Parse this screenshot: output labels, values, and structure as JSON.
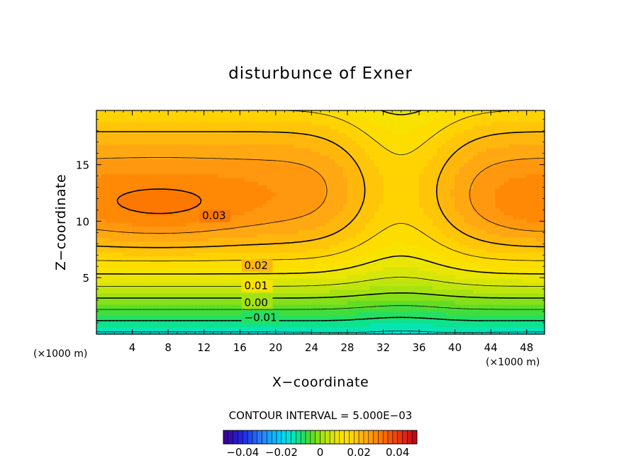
{
  "chart_data": {
    "type": "heatmap",
    "title": "disturbunce of Exner",
    "xlabel": "X−coordinate",
    "ylabel": "Z−coordinate",
    "x_unit": "(×1000 m)",
    "x_unit_right": "(×1000 m)",
    "xlim": [
      0,
      50
    ],
    "ylim": [
      0,
      19.8
    ],
    "x_ticks": [
      4,
      8,
      12,
      16,
      20,
      24,
      28,
      32,
      36,
      40,
      44,
      48
    ],
    "y_ticks": [
      5,
      10,
      15
    ],
    "contour_interval_text": "CONTOUR INTERVAL = 5.000E−03",
    "contour_interval": 0.005,
    "contour_labels": [
      {
        "text": "0.03",
        "x": 11.8,
        "z": 10.3,
        "value": 0.03
      },
      {
        "text": "0.02",
        "x": 16.5,
        "z": 5.9,
        "value": 0.02
      },
      {
        "text": "0.01",
        "x": 16.5,
        "z": 4.1,
        "value": 0.01
      },
      {
        "text": "0.00",
        "x": 16.5,
        "z": 2.6,
        "value": 0.0
      },
      {
        "text": "−0.01",
        "x": 16.5,
        "z": 1.3,
        "value": -0.01
      }
    ],
    "colorbar": {
      "range": [
        -0.05,
        0.05
      ],
      "tick_values": [
        -0.04,
        -0.02,
        0,
        0.02,
        0.04
      ],
      "tick_labels": [
        "−0.04",
        "−0.02",
        "0",
        "0.02",
        "0.04"
      ]
    },
    "field_description": "Exner pressure disturbance: low near surface, increasing with height; maxima near z=11 at x~6 and x~50; valley/dip over x~34."
  },
  "colors": {
    "background": "#ffffff",
    "frame": "#000000"
  }
}
